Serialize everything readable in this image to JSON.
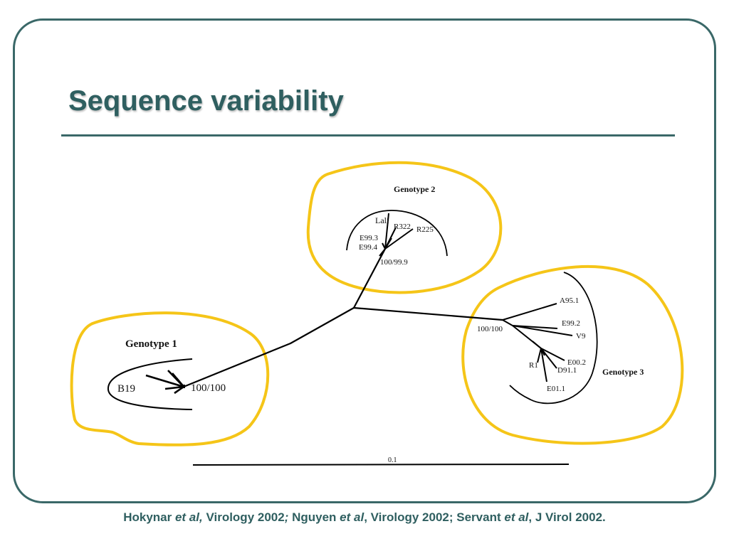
{
  "slide": {
    "title": "Sequence variability"
  },
  "tree": {
    "genotype1": {
      "label": "Genotype 1",
      "isolate": "B19",
      "bootstrap": "100/100"
    },
    "genotype2": {
      "label": "Genotype 2",
      "isolates": [
        "Lali",
        "R322",
        "R225",
        "E99.3",
        "E99.4"
      ],
      "bootstrap": "100/99.9"
    },
    "genotype3": {
      "label": "Genotype 3",
      "isolates": [
        "A95.1",
        "E99.2",
        "V9",
        "E00.2",
        "R1",
        "D91.1",
        "E01.1"
      ],
      "bootstrap": "100/100"
    },
    "scale_label": "0.1",
    "highlight_color": "#f5c518"
  },
  "citation": {
    "part1": "Hokynar ",
    "etal1": "et al,",
    "part2": " Virology 2002",
    "sep": ";",
    "part3": "  Nguyen ",
    "etal2": "et al",
    "part4": ", Virology 2002; Servant ",
    "etal3": "et al",
    "part5": ", J Virol 2002."
  }
}
